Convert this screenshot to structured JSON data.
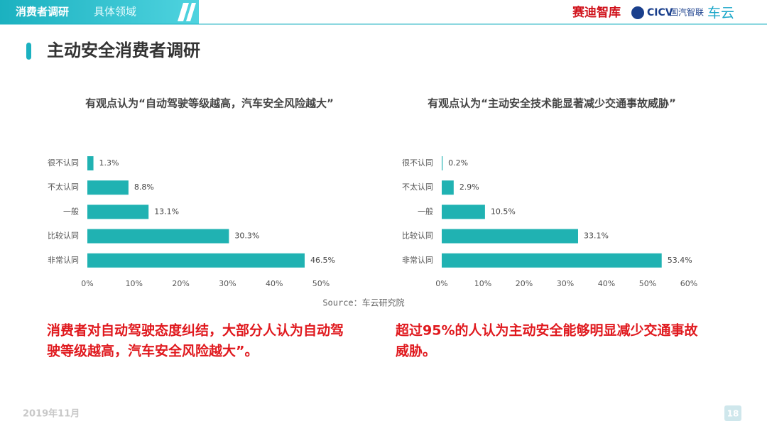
{
  "header": {
    "section": "消费者调研",
    "subsection": "具体领域",
    "logos": [
      "赛迪智库",
      "CICV",
      "国汽智联",
      "车云"
    ]
  },
  "title": "主动安全消费者调研",
  "chart_data": [
    {
      "type": "bar",
      "orientation": "horizontal",
      "title": "有观点认为“自动驾驶等级越高，汽车安全风险越大”",
      "categories": [
        "很不认同",
        "不太认同",
        "一般",
        "比较认同",
        "非常认同"
      ],
      "values": [
        1.3,
        8.8,
        13.1,
        30.3,
        46.5
      ],
      "value_labels": [
        "1.3%",
        "8.8%",
        "13.1%",
        "30.3%",
        "46.5%"
      ],
      "color": "#20b2b2",
      "xlim": [
        0,
        50
      ],
      "xticks": [
        {
          "value": 0,
          "label": "0%"
        },
        {
          "value": 10,
          "label": "10%"
        },
        {
          "value": 20,
          "label": "20%"
        },
        {
          "value": 30,
          "label": "30%"
        },
        {
          "value": 40,
          "label": "40%"
        },
        {
          "value": 50,
          "label": "50%"
        }
      ]
    },
    {
      "type": "bar",
      "orientation": "horizontal",
      "title": "有观点认为“主动安全技术能显著减少交通事故威胁”",
      "categories": [
        "很不认同",
        "不太认同",
        "一般",
        "比较认同",
        "非常认同"
      ],
      "values": [
        0.2,
        2.9,
        10.5,
        33.1,
        53.4
      ],
      "value_labels": [
        "0.2%",
        "2.9%",
        "10.5%",
        "33.1%",
        "53.4%"
      ],
      "color": "#20b2b2",
      "xlim": [
        0,
        60
      ],
      "xticks": [
        {
          "value": 0,
          "label": "0%"
        },
        {
          "value": 10,
          "label": "10%"
        },
        {
          "value": 20,
          "label": "20%"
        },
        {
          "value": 30,
          "label": "30%"
        },
        {
          "value": 40,
          "label": "40%"
        },
        {
          "value": 50,
          "label": "50%"
        },
        {
          "value": 60,
          "label": "60%"
        }
      ]
    }
  ],
  "source": "Source：车云研究院",
  "conclusions": [
    [
      "消费者对自动驾驶态度纠结，大部分人认为自动驾",
      "驶等级越高，汽车安全风险越大”。"
    ],
    [
      "超过95%的人认为主动安全能够明显减少交通事故",
      "威胁。"
    ]
  ],
  "date": "2019年11月",
  "page_number": "18"
}
